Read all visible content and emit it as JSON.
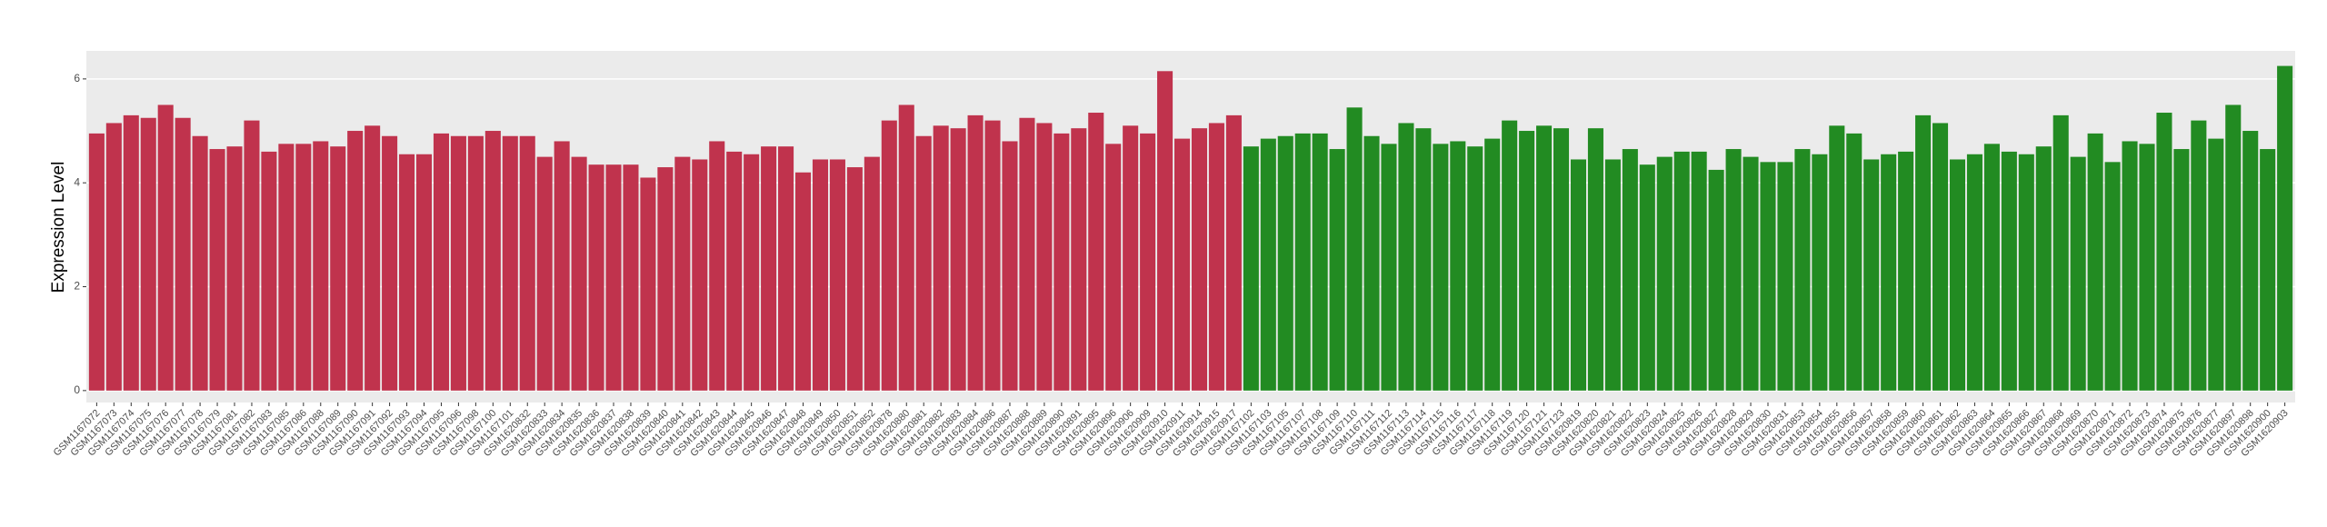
{
  "chart_data": {
    "type": "bar",
    "y_label": "Expression Level",
    "ylim": [
      -0.23,
      6.54
    ],
    "yticks": [
      0,
      2,
      4,
      6
    ],
    "panel_background": "#ebebeb",
    "grid": true,
    "groups": [
      {
        "color": "#c0334d",
        "categories": [
          "GSM1167072",
          "GSM1167073",
          "GSM1167074",
          "GSM1167075",
          "GSM1167076",
          "GSM1167077",
          "GSM1167078",
          "GSM1167079",
          "GSM1167081",
          "GSM1167082",
          "GSM1167083",
          "GSM1167085",
          "GSM1167086",
          "GSM1167088",
          "GSM1167089",
          "GSM1167090",
          "GSM1167091",
          "GSM1167092",
          "GSM1167093",
          "GSM1167094",
          "GSM1167095",
          "GSM1167096",
          "GSM1167098",
          "GSM1167100",
          "GSM1167101",
          "GSM1620832",
          "GSM1620833",
          "GSM1620834",
          "GSM1620835",
          "GSM1620836",
          "GSM1620837",
          "GSM1620838",
          "GSM1620839",
          "GSM1620840",
          "GSM1620841",
          "GSM1620842",
          "GSM1620843",
          "GSM1620844",
          "GSM1620845",
          "GSM1620846",
          "GSM1620847",
          "GSM1620848",
          "GSM1620849",
          "GSM1620850",
          "GSM1620851",
          "GSM1620852",
          "GSM1620878",
          "GSM1620880",
          "GSM1620881",
          "GSM1620882",
          "GSM1620883",
          "GSM1620884",
          "GSM1620886",
          "GSM1620887",
          "GSM1620888",
          "GSM1620889",
          "GSM1620890",
          "GSM1620891",
          "GSM1620895",
          "GSM1620896",
          "GSM1620906",
          "GSM1620909",
          "GSM1620910",
          "GSM1620911",
          "GSM1620914",
          "GSM1620915",
          "GSM1620917"
        ],
        "values": [
          4.95,
          5.15,
          5.3,
          5.25,
          5.5,
          5.25,
          4.9,
          4.65,
          4.7,
          5.2,
          4.6,
          4.75,
          4.75,
          4.8,
          4.7,
          5.0,
          5.1,
          4.9,
          4.55,
          4.55,
          4.95,
          4.9,
          4.9,
          5.0,
          4.9,
          4.9,
          4.5,
          4.8,
          4.5,
          4.35,
          4.35,
          4.35,
          4.1,
          4.3,
          4.5,
          4.45,
          4.8,
          4.6,
          4.55,
          4.7,
          4.7,
          4.2,
          4.45,
          4.45,
          4.3,
          4.5,
          5.2,
          5.5,
          4.9,
          5.1,
          5.05,
          5.3,
          5.2,
          4.8,
          5.25,
          5.15,
          4.95,
          5.05,
          5.35,
          4.75,
          5.1,
          4.95,
          6.15,
          4.85,
          5.05,
          5.15,
          5.3
        ]
      },
      {
        "color": "#228b22",
        "categories": [
          "GSM1167102",
          "GSM1167103",
          "GSM1167105",
          "GSM1167107",
          "GSM1167108",
          "GSM1167109",
          "GSM1167110",
          "GSM1167111",
          "GSM1167112",
          "GSM1167113",
          "GSM1167114",
          "GSM1167115",
          "GSM1167116",
          "GSM1167117",
          "GSM1167118",
          "GSM1167119",
          "GSM1167120",
          "GSM1167121",
          "GSM1167123",
          "GSM1620819",
          "GSM1620820",
          "GSM1620821",
          "GSM1620822",
          "GSM1620823",
          "GSM1620824",
          "GSM1620825",
          "GSM1620826",
          "GSM1620827",
          "GSM1620828",
          "GSM1620829",
          "GSM1620830",
          "GSM1620831",
          "GSM1620853",
          "GSM1620854",
          "GSM1620855",
          "GSM1620856",
          "GSM1620857",
          "GSM1620858",
          "GSM1620859",
          "GSM1620860",
          "GSM1620861",
          "GSM1620862",
          "GSM1620863",
          "GSM1620864",
          "GSM1620865",
          "GSM1620866",
          "GSM1620867",
          "GSM1620868",
          "GSM1620869",
          "GSM1620870",
          "GSM1620871",
          "GSM1620872",
          "GSM1620873",
          "GSM1620874",
          "GSM1620875",
          "GSM1620876",
          "GSM1620877",
          "GSM1620897",
          "GSM1620898",
          "GSM1620900",
          "GSM1620903"
        ],
        "values": [
          4.7,
          4.85,
          4.9,
          4.95,
          4.95,
          4.65,
          5.45,
          4.9,
          4.75,
          5.15,
          5.05,
          4.75,
          4.8,
          4.7,
          4.85,
          5.2,
          5.0,
          5.1,
          5.05,
          4.45,
          5.05,
          4.45,
          4.65,
          4.35,
          4.5,
          4.6,
          4.6,
          4.25,
          4.65,
          4.5,
          4.4,
          4.4,
          4.65,
          4.55,
          5.1,
          4.95,
          4.45,
          4.55,
          4.6,
          5.3,
          5.15,
          4.45,
          4.55,
          4.75,
          4.6,
          4.55,
          4.7,
          5.3,
          4.5,
          4.95,
          4.4,
          4.8,
          4.75,
          5.35,
          4.65,
          5.2,
          4.85,
          5.5,
          5.0,
          4.65,
          6.25
        ]
      }
    ]
  }
}
